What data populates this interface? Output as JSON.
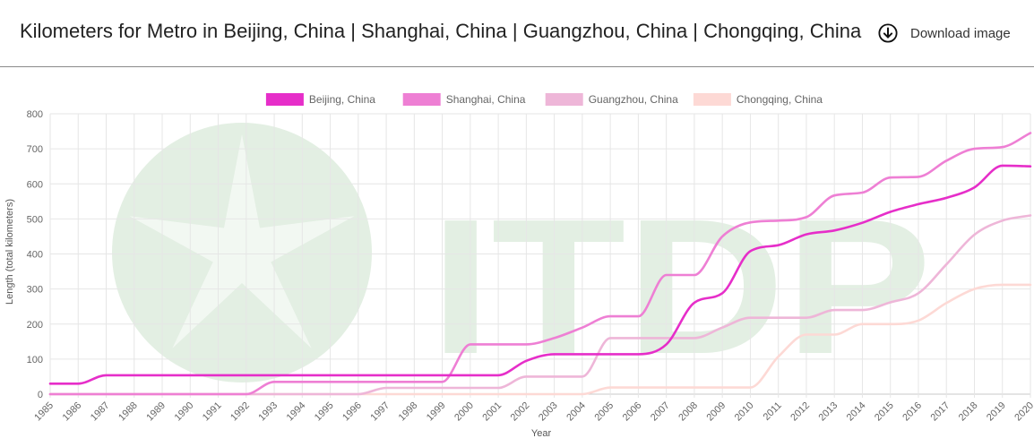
{
  "header": {
    "title": "Kilometers for Metro in Beijing, China | Shanghai, China | Guangzhou, China | Chongqing, China",
    "download_label": "Download image"
  },
  "watermark": {
    "text": "ITDP",
    "color": "#e3efe3"
  },
  "chart_data": {
    "type": "line",
    "title": "Kilometers for Metro in Beijing, China | Shanghai, China | Guangzhou, China | Chongqing, China",
    "xlabel": "Year",
    "ylabel": "Length (total kilometers)",
    "ylim": [
      0,
      800
    ],
    "yticks": [
      0,
      100,
      200,
      300,
      400,
      500,
      600,
      700,
      800
    ],
    "grid": true,
    "legend_position": "top-center",
    "x": [
      "1985",
      "1986",
      "1987",
      "1988",
      "1989",
      "1990",
      "1991",
      "1992",
      "1993",
      "1994",
      "1995",
      "1996",
      "1997",
      "1998",
      "1999",
      "2000",
      "2001",
      "2002",
      "2003",
      "2004",
      "2005",
      "2006",
      "2007",
      "2008",
      "2009",
      "2010",
      "2011",
      "2012",
      "2013",
      "2014",
      "2015",
      "2016",
      "2017",
      "2018",
      "2019",
      "2020"
    ],
    "series": [
      {
        "name": "Beijing, China",
        "color": "#e62ec9",
        "values": [
          30,
          30,
          54,
          54,
          54,
          54,
          54,
          54,
          54,
          54,
          54,
          54,
          54,
          54,
          54,
          54,
          54,
          95,
          114,
          114,
          114,
          114,
          142,
          261,
          288,
          408,
          425,
          456,
          467,
          489,
          520,
          542,
          560,
          590,
          652,
          650
        ]
      },
      {
        "name": "Shanghai, China",
        "color": "#ee7fd4",
        "values": [
          0,
          0,
          0,
          0,
          0,
          0,
          0,
          0,
          35,
          35,
          35,
          35,
          35,
          35,
          35,
          142,
          142,
          142,
          160,
          190,
          222,
          222,
          340,
          340,
          450,
          490,
          495,
          505,
          567,
          575,
          618,
          620,
          666,
          700,
          705,
          745
        ]
      },
      {
        "name": "Guangzhou, China",
        "color": "#eeb6d8",
        "values": [
          0,
          0,
          0,
          0,
          0,
          0,
          0,
          0,
          0,
          0,
          0,
          0,
          18,
          18,
          18,
          18,
          18,
          50,
          50,
          50,
          160,
          160,
          160,
          160,
          190,
          218,
          218,
          218,
          240,
          240,
          262,
          288,
          370,
          455,
          495,
          510
        ]
      },
      {
        "name": "Chongqing, China",
        "color": "#fdd9d5",
        "values": [
          0,
          0,
          0,
          0,
          0,
          0,
          0,
          0,
          0,
          0,
          0,
          0,
          0,
          0,
          0,
          0,
          0,
          0,
          0,
          0,
          19,
          19,
          19,
          19,
          19,
          19,
          107,
          170,
          170,
          200,
          200,
          210,
          260,
          300,
          312,
          312
        ]
      }
    ]
  }
}
